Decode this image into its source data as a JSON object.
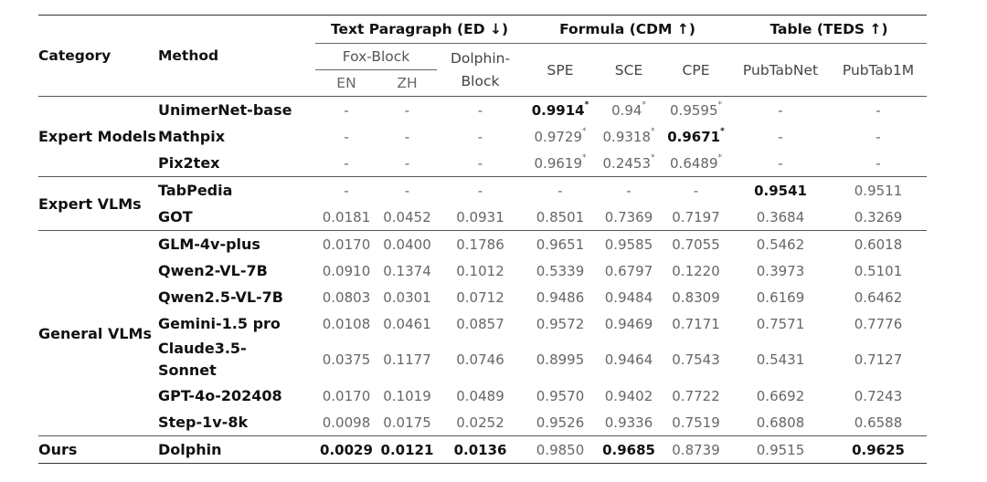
{
  "header": {
    "category": "Category",
    "method": "Method",
    "group_text": "Text Paragraph (ED ↓)",
    "group_formula": "Formula (CDM ↑)",
    "group_table": "Table (TEDS ↑)",
    "fox_block": "Fox-Block",
    "dolphin_block": "Dolphin-Block",
    "en": "EN",
    "zh": "ZH",
    "spe": "SPE",
    "sce": "SCE",
    "cpe": "CPE",
    "pubtabnet": "PubTabNet",
    "pubtab1m": "PubTab1M"
  },
  "categories": {
    "expert_models": "Expert Models",
    "expert_vlms": "Expert VLMs",
    "general_vlms": "General VLMs",
    "ours": "Ours"
  },
  "rows": [
    {
      "method": "UnimerNet-base",
      "v": [
        "-",
        "-",
        "-",
        "0.9914",
        "0.94",
        "0.9595",
        "-",
        "-"
      ],
      "star": [
        false,
        false,
        false,
        true,
        true,
        true,
        false,
        false
      ]
    },
    {
      "method": "Mathpix",
      "v": [
        "-",
        "-",
        "-",
        "0.9729",
        "0.9318",
        "0.9671",
        "-",
        "-"
      ],
      "star": [
        false,
        false,
        false,
        true,
        true,
        true,
        false,
        false
      ]
    },
    {
      "method": "Pix2tex",
      "v": [
        "-",
        "-",
        "-",
        "0.9619",
        "0.2453",
        "0.6489",
        "-",
        "-"
      ],
      "star": [
        false,
        false,
        false,
        true,
        true,
        true,
        false,
        false
      ]
    },
    {
      "method": "TabPedia",
      "v": [
        "-",
        "-",
        "-",
        "-",
        "-",
        "-",
        "0.9541",
        "0.9511"
      ]
    },
    {
      "method": "GOT",
      "v": [
        "0.0181",
        "0.0452",
        "0.0931",
        "0.8501",
        "0.7369",
        "0.7197",
        "0.3684",
        "0.3269"
      ]
    },
    {
      "method": "GLM-4v-plus",
      "v": [
        "0.0170",
        "0.0400",
        "0.1786",
        "0.9651",
        "0.9585",
        "0.7055",
        "0.5462",
        "0.6018"
      ]
    },
    {
      "method": "Qwen2-VL-7B",
      "v": [
        "0.0910",
        "0.1374",
        "0.1012",
        "0.5339",
        "0.6797",
        "0.1220",
        "0.3973",
        "0.5101"
      ]
    },
    {
      "method": "Qwen2.5-VL-7B",
      "v": [
        "0.0803",
        "0.0301",
        "0.0712",
        "0.9486",
        "0.9484",
        "0.8309",
        "0.6169",
        "0.6462"
      ]
    },
    {
      "method": "Gemini-1.5 pro",
      "v": [
        "0.0108",
        "0.0461",
        "0.0857",
        "0.9572",
        "0.9469",
        "0.7171",
        "0.7571",
        "0.7776"
      ]
    },
    {
      "method": "Claude3.5-Sonnet",
      "v": [
        "0.0375",
        "0.1177",
        "0.0746",
        "0.8995",
        "0.9464",
        "0.7543",
        "0.5431",
        "0.7127"
      ]
    },
    {
      "method": "GPT-4o-202408",
      "v": [
        "0.0170",
        "0.1019",
        "0.0489",
        "0.9570",
        "0.9402",
        "0.7722",
        "0.6692",
        "0.7243"
      ]
    },
    {
      "method": "Step-1v-8k",
      "v": [
        "0.0098",
        "0.0175",
        "0.0252",
        "0.9526",
        "0.9336",
        "0.7519",
        "0.6808",
        "0.6588"
      ]
    },
    {
      "method": "Dolphin",
      "v": [
        "0.0029",
        "0.0121",
        "0.0136",
        "0.9850",
        "0.9685",
        "0.8739",
        "0.9515",
        "0.9625"
      ]
    }
  ],
  "star_mark": "*",
  "bold_cells": [
    [
      0,
      3
    ],
    [
      1,
      5
    ],
    [
      3,
      6
    ],
    [
      12,
      0
    ],
    [
      12,
      1
    ],
    [
      12,
      2
    ],
    [
      12,
      4
    ],
    [
      12,
      7
    ]
  ]
}
